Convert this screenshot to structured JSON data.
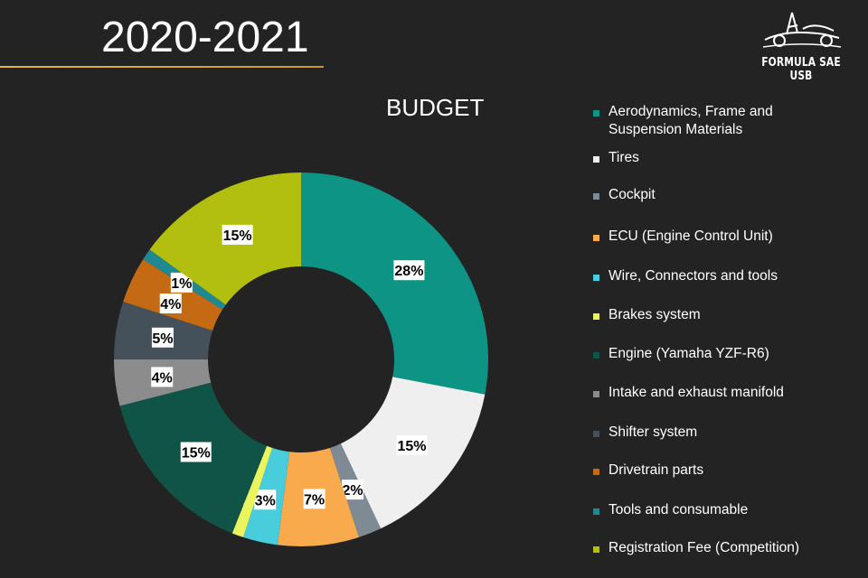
{
  "header": {
    "year": "2020-2021",
    "logo_text": "FORMULA SAE USB"
  },
  "chart_data": {
    "type": "donut",
    "title": "BUDGET",
    "unit": "%",
    "legend_position": "right",
    "series": [
      {
        "name": "Aerodynamics, Frame and Suspension Materials",
        "value": 28,
        "label": "28%",
        "color": "#0e9484"
      },
      {
        "name": "Tires",
        "value": 15,
        "label": "15%",
        "color": "#efefef"
      },
      {
        "name": "Cockpit",
        "value": 2,
        "label": "2%",
        "color": "#7e8b94"
      },
      {
        "name": "ECU (Engine Control Unit)",
        "value": 7,
        "label": "7%",
        "color": "#f8aa4c"
      },
      {
        "name": "Wire, Connectors and tools",
        "value": 3,
        "label": "3%",
        "color": "#47cddc"
      },
      {
        "name": "Brakes system",
        "value": 1,
        "label": "1%",
        "color": "#eaf55e"
      },
      {
        "name": "Engine (Yamaha YZF-R6)",
        "value": 15,
        "label": "15%",
        "color": "#0f5446"
      },
      {
        "name": "Intake and exhaust manifold",
        "value": 4,
        "label": "4%",
        "color": "#8c8c8c"
      },
      {
        "name": "Shifter system",
        "value": 5,
        "label": "5%",
        "color": "#44505a"
      },
      {
        "name": "Drivetrain parts",
        "value": 4,
        "label": "4%",
        "color": "#c46a12"
      },
      {
        "name": "Tools and consumable",
        "value": 1,
        "label": "1%",
        "color": "#1e8893"
      },
      {
        "name": "Registration Fee (Competition)",
        "value": 15,
        "label": "15%",
        "color": "#b2bf0e"
      }
    ]
  }
}
